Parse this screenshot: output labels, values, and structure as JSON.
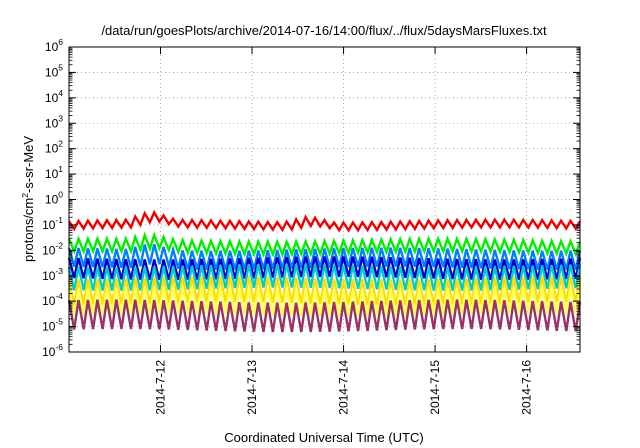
{
  "chart_data": {
    "type": "line",
    "title": "/data/run/goesPlots/archive/2014-07-16/14:00/flux/../flux/5daysMarsFluxes.txt",
    "xlabel": "Coordinated Universal Time (UTC)",
    "ylabel_parts": [
      "protons/cm",
      "2",
      "-s-sr-MeV"
    ],
    "yscale": "log",
    "ylim": [
      1e-06,
      1000000.0
    ],
    "yticks": [
      {
        "base": "10",
        "exp": "6"
      },
      {
        "base": "10",
        "exp": "5"
      },
      {
        "base": "10",
        "exp": "4"
      },
      {
        "base": "10",
        "exp": "3"
      },
      {
        "base": "10",
        "exp": "2"
      },
      {
        "base": "10",
        "exp": "1"
      },
      {
        "base": "10",
        "exp": "0"
      },
      {
        "base": "10",
        "exp": "-1"
      },
      {
        "base": "10",
        "exp": "-2"
      },
      {
        "base": "10",
        "exp": "-3"
      },
      {
        "base": "10",
        "exp": "-4"
      },
      {
        "base": "10",
        "exp": "-5"
      },
      {
        "base": "10",
        "exp": "-6"
      }
    ],
    "xlim": [
      "2014-07-11 00:00",
      "2014-07-16 14:00"
    ],
    "xticks": [
      "2014-7-12",
      "2014-7-13",
      "2014-7-14",
      "2014-7-15",
      "2014-7-16"
    ],
    "grid": true,
    "series": [
      {
        "color": "#ee0000",
        "low": 0.07,
        "high": 0.14,
        "bumps": [
          [
            0.16,
            0.3
          ],
          [
            0.47,
            0.25
          ]
        ]
      },
      {
        "color": "#00ee00",
        "low": 0.008,
        "high": 0.025,
        "bumps": [
          [
            0.16,
            0.04
          ]
        ]
      },
      {
        "color": "#0080ff",
        "low": 0.002,
        "high": 0.011,
        "bumps": [
          [
            0.16,
            0.02
          ]
        ]
      },
      {
        "color": "#0000cc",
        "low": 0.0008,
        "high": 0.005,
        "bumps": []
      },
      {
        "color": "#00cccc",
        "low": 0.0003,
        "high": 0.0025,
        "bumps": []
      },
      {
        "color": "#ffdd00",
        "low": 8e-05,
        "high": 0.0008,
        "bumps": []
      },
      {
        "color": "#ffff55",
        "low": 3e-05,
        "high": 0.0003,
        "bumps": []
      },
      {
        "color": "#993366",
        "low": 7e-06,
        "high": 0.0001,
        "bumps": []
      }
    ]
  }
}
